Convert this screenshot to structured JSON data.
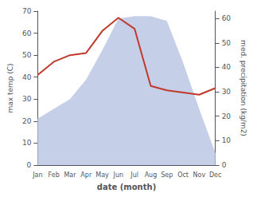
{
  "chart_data": {
    "type": "line",
    "xlabel": "date (month)",
    "ylabel": "max temp (C)",
    "y2label": "med. precipitation (kg/m2)",
    "categories": [
      "Jan",
      "Feb",
      "Mar",
      "Apr",
      "May",
      "Jun",
      "Jul",
      "Aug",
      "Sep",
      "Oct",
      "Nov",
      "Dec"
    ],
    "series": [
      {
        "type": "line",
        "color": "#c0392b",
        "values": [
          41,
          47,
          50,
          51,
          61,
          67,
          62,
          36,
          34,
          33,
          32,
          35
        ]
      },
      {
        "type": "area",
        "axis": "y2",
        "color": "#c5cfe8",
        "values": [
          19,
          23,
          27,
          35,
          47,
          60,
          61,
          61,
          59,
          42,
          23,
          5
        ]
      }
    ],
    "ylim": [
      0,
      70
    ],
    "yticks": [
      0,
      10,
      20,
      30,
      40,
      50,
      60,
      70
    ],
    "y2lim": [
      0,
      63
    ],
    "y2ticks": [
      0,
      10,
      20,
      30,
      40,
      50,
      60
    ],
    "grid": false
  }
}
